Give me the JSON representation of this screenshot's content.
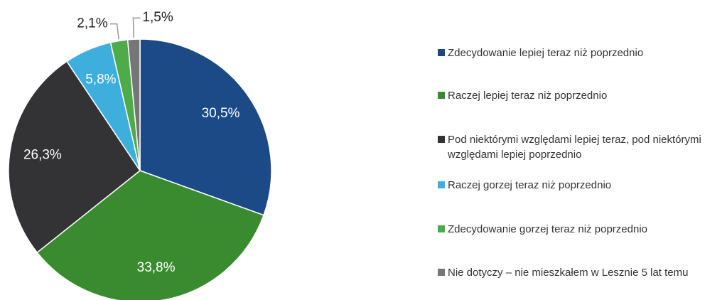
{
  "chart_data": {
    "type": "pie",
    "categories": [
      "Zdecydowanie lepiej teraz niż poprzednio",
      "Raczej lepiej teraz niż poprzednio",
      "Pod niektórymi względami lepiej teraz, pod niektórymi względami lepiej poprzednio",
      "Raczej gorzej teraz niż poprzednio",
      "Zdecydowanie gorzej teraz niż poprzednio",
      "Nie dotyczy – nie mieszkałem w Lesznie 5 lat temu"
    ],
    "values": [
      30.5,
      33.8,
      26.3,
      5.8,
      2.1,
      1.5
    ],
    "value_labels": [
      "30,5%",
      "33,8%",
      "26,3%",
      "5,8%",
      "2,1%",
      "1,5%"
    ],
    "colors": [
      "#1b4a87",
      "#3a8b30",
      "#333335",
      "#3eafdc",
      "#4dab4a",
      "#767678"
    ],
    "legend": "right"
  }
}
